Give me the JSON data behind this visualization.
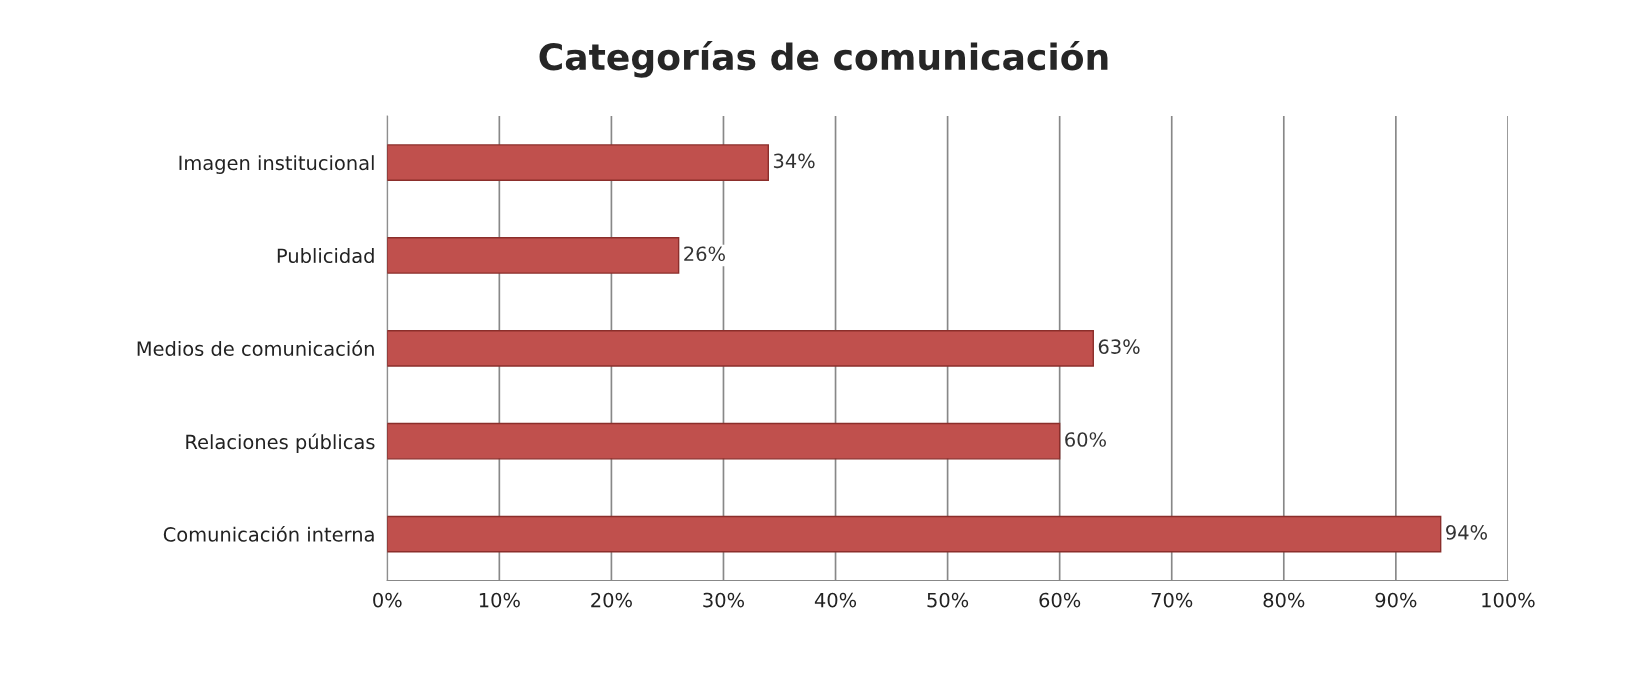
{
  "chart_data": {
    "type": "bar",
    "orientation": "horizontal",
    "title": "Categorías de comunicación",
    "categories": [
      "Imagen institucional",
      "Publicidad",
      "Medios de comunicación",
      "Relaciones públicas",
      "Comunicación interna"
    ],
    "values": [
      34,
      26,
      63,
      60,
      94
    ],
    "value_labels": [
      "34%",
      "26%",
      "63%",
      "60%",
      "94%"
    ],
    "color": "#c0504d",
    "xlim": [
      0,
      100
    ],
    "xticks": [
      {
        "value": 0,
        "label": "0%"
      },
      {
        "value": 10,
        "label": "10%"
      },
      {
        "value": 20,
        "label": "20%"
      },
      {
        "value": 30,
        "label": "30%"
      },
      {
        "value": 40,
        "label": "40%"
      },
      {
        "value": 50,
        "label": "50%"
      },
      {
        "value": 60,
        "label": "60%"
      },
      {
        "value": 70,
        "label": "70%"
      },
      {
        "value": 80,
        "label": "80%"
      },
      {
        "value": 90,
        "label": "90%"
      },
      {
        "value": 100,
        "label": "100%"
      }
    ],
    "grid": "x"
  }
}
